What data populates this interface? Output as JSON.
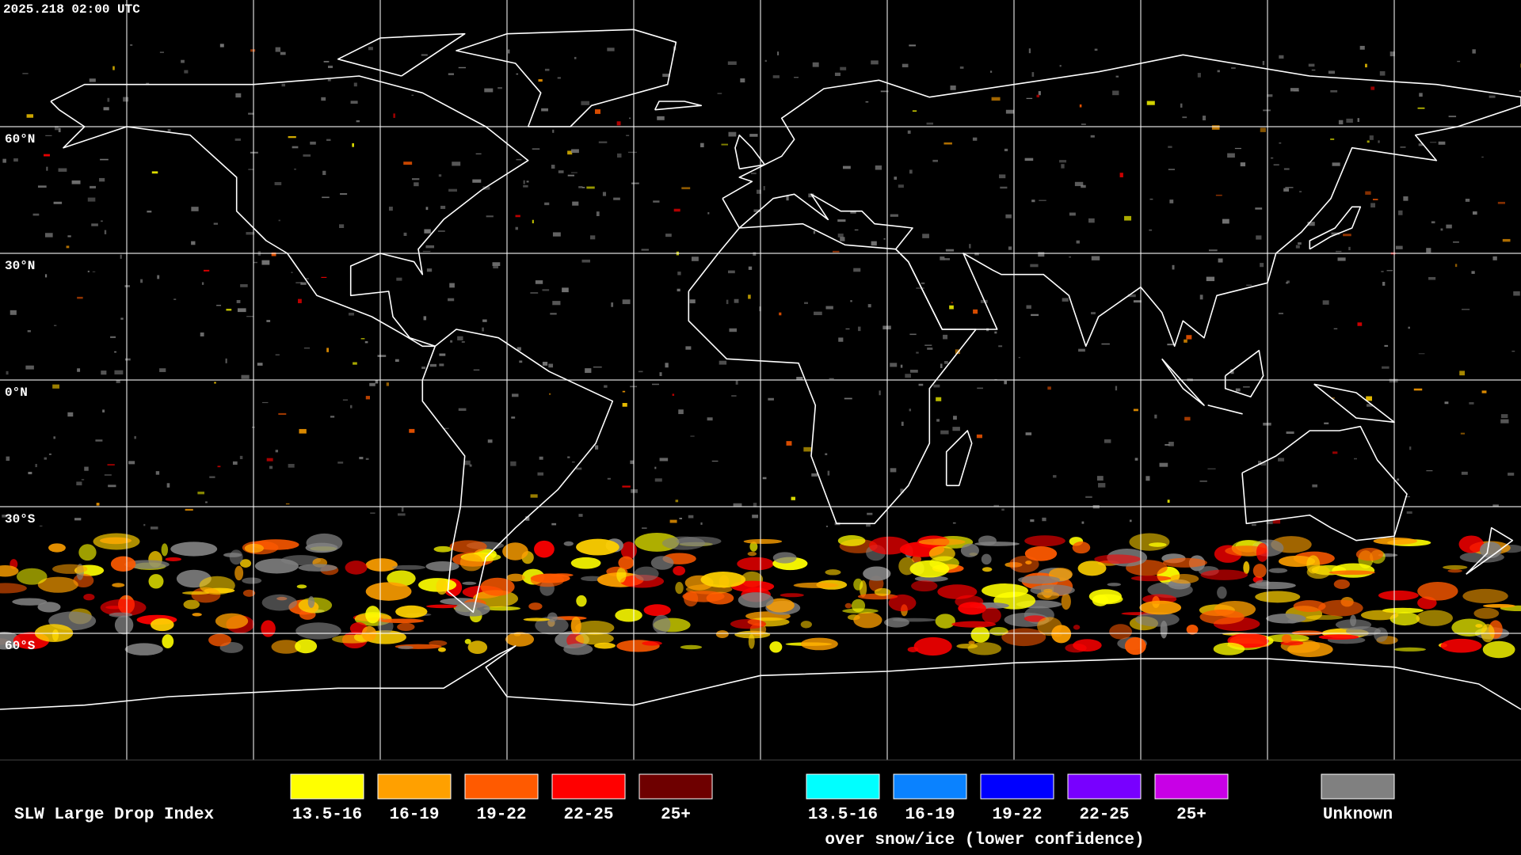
{
  "timestamp": "2025.218 02:00 UTC",
  "latitude_labels": [
    "60°N",
    "30°N",
    "0°N",
    "30°S",
    "60°S"
  ],
  "legend": {
    "title": "SLW Large Drop Index",
    "items": [
      {
        "label": "13.5-16",
        "color": "#ffff00"
      },
      {
        "label": "16-19",
        "color": "#ffa000"
      },
      {
        "label": "19-22",
        "color": "#ff5a00"
      },
      {
        "label": "22-25",
        "color": "#ff0000"
      },
      {
        "label": "25+",
        "color": "#6e0000"
      }
    ],
    "snow_items": [
      {
        "label": "13.5-16",
        "color": "#00ffff"
      },
      {
        "label": "16-19",
        "color": "#0a82ff"
      },
      {
        "label": "19-22",
        "color": "#0000ff"
      },
      {
        "label": "22-25",
        "color": "#7800ff"
      },
      {
        "label": "25+",
        "color": "#c800e6"
      }
    ],
    "snow_caption": "over snow/ice (lower confidence)",
    "unknown": {
      "label": "Unknown",
      "color": "#808080"
    }
  }
}
